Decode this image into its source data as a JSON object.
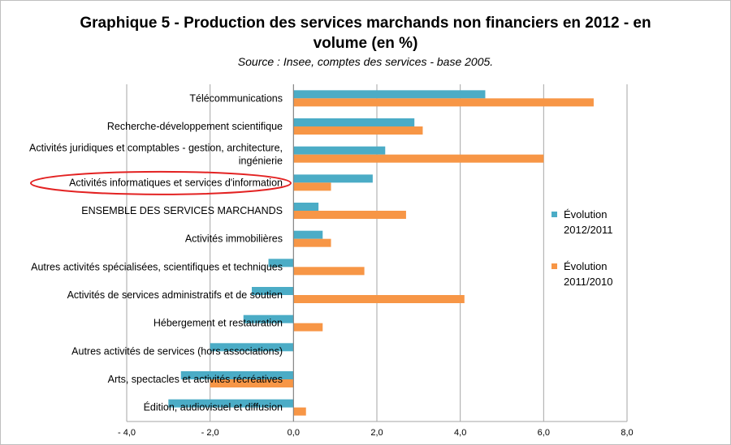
{
  "chart_data": {
    "type": "bar",
    "orientation": "horizontal",
    "title": "Graphique 5 - Production des services marchands non financiers en 2012 - en volume (en %)",
    "title_lines": [
      "Graphique 5 - Production des services marchands non financiers en 2012 - en",
      "volume (en %)"
    ],
    "subtitle": "Source : Insee, comptes des services - base 2005.",
    "categories": [
      "Télécommunications",
      "Recherche-développement scientifique",
      "Activités juridiques et comptables - gestion, architecture, ingénierie",
      "Activités informatiques et services d'information",
      "ENSEMBLE DES SERVICES MARCHANDS",
      "Activités immobilières",
      "Autres activités spécialisées, scientifiques et techniques",
      "Activités de services administratifs et de soutien",
      "Hébergement et restauration",
      "Autres activités de services (hors associations)",
      "Arts, spectacles et activités récréatives",
      "Édition, audiovisuel et diffusion"
    ],
    "category_lines": [
      [
        "Télécommunications"
      ],
      [
        "Recherche-développement scientifique"
      ],
      [
        "Activités juridiques et comptables - gestion, architecture,",
        "ingénierie"
      ],
      [
        "Activités informatiques et services d'information"
      ],
      [
        "ENSEMBLE DES SERVICES MARCHANDS"
      ],
      [
        "Activités immobilières"
      ],
      [
        "Autres activités spécialisées, scientifiques et techniques"
      ],
      [
        "Activités de services administratifs et de soutien"
      ],
      [
        "Hébergement et restauration"
      ],
      [
        "Autres activités de services (hors associations)"
      ],
      [
        "Arts, spectacles et activités récréatives"
      ],
      [
        "Édition, audiovisuel et diffusion"
      ]
    ],
    "series": [
      {
        "name": "Évolution 2012/2011",
        "legend_lines": [
          "Évolution",
          "2012/2011"
        ],
        "color": "#4bacc6",
        "values": [
          4.6,
          2.9,
          2.2,
          1.9,
          0.6,
          0.7,
          -0.6,
          -1.0,
          -1.2,
          -2.0,
          -2.7,
          -3.0
        ]
      },
      {
        "name": "Évolution 2011/2010",
        "legend_lines": [
          "Évolution",
          "2011/2010"
        ],
        "color": "#f79646",
        "values": [
          7.2,
          3.1,
          6.0,
          0.9,
          2.7,
          0.9,
          1.7,
          4.1,
          0.7,
          0.0,
          -2.0,
          0.3
        ]
      }
    ],
    "xlim": [
      -4.0,
      8.0
    ],
    "xticks": [
      -4.0,
      -2.0,
      0.0,
      2.0,
      4.0,
      6.0,
      8.0
    ],
    "xtick_labels": [
      "- 4,0",
      "- 2,0",
      "0,0",
      "2,0",
      "4,0",
      "6,0",
      "8,0"
    ],
    "grid": true,
    "legend_position": "right",
    "highlighted_category": "Activités informatiques et services d'information",
    "highlight_color": "#e32222"
  }
}
